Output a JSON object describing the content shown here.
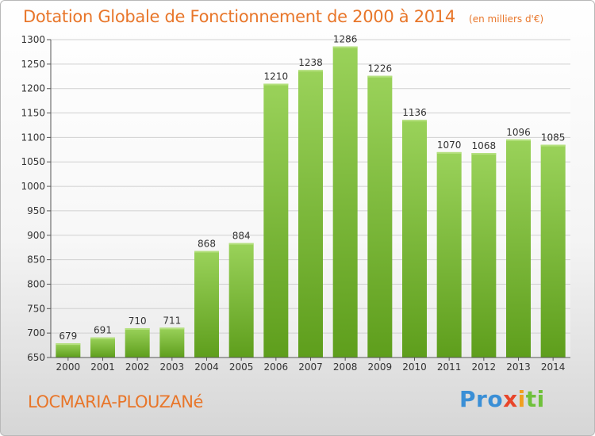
{
  "title": "Dotation Globale de Fonctionnement de 2000 à 2014",
  "unit_note": "(en milliers d'€)",
  "commune": "LOCMARIA-PLOUZANé",
  "logo": {
    "p1": "Pro",
    "p2": "x",
    "p3": "i",
    "p4": "ti"
  },
  "colors": {
    "bar_top": "#9ad25a",
    "bar_bottom": "#5e9e1c",
    "title": "#e8762a"
  },
  "chart_data": {
    "type": "bar",
    "categories": [
      "2000",
      "2001",
      "2002",
      "2003",
      "2004",
      "2005",
      "2006",
      "2007",
      "2008",
      "2009",
      "2010",
      "2011",
      "2012",
      "2013",
      "2014"
    ],
    "values": [
      679,
      691,
      710,
      711,
      868,
      884,
      1210,
      1238,
      1286,
      1226,
      1136,
      1070,
      1068,
      1096,
      1085
    ],
    "ylim": [
      650,
      1300
    ],
    "yticks": [
      650,
      700,
      750,
      800,
      850,
      900,
      950,
      1000,
      1050,
      1100,
      1150,
      1200,
      1250,
      1300
    ],
    "grid": true
  }
}
